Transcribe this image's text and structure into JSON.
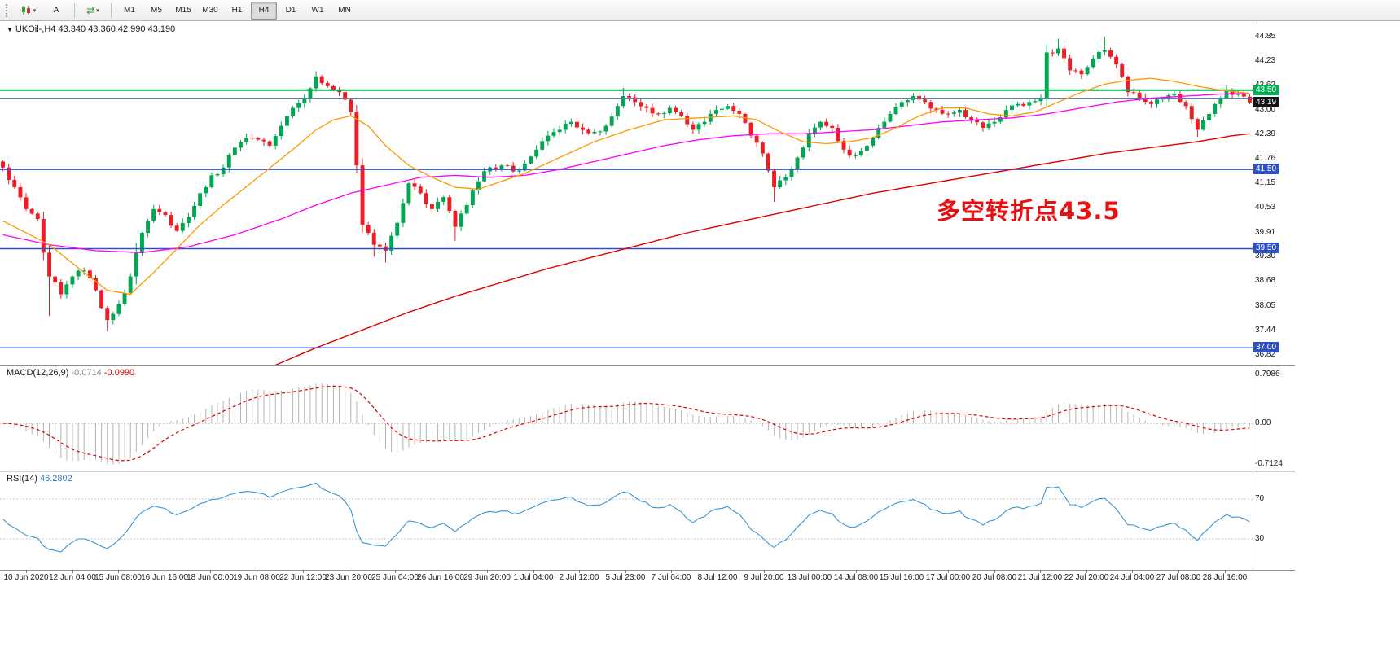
{
  "toolbar": {
    "annotate_label": "A",
    "timeframes": [
      "M1",
      "M5",
      "M15",
      "M30",
      "H1",
      "H4",
      "D1",
      "W1",
      "MN"
    ],
    "active_timeframe": "H4"
  },
  "chart": {
    "symbol_title": "UKOil-,H4 43.340 43.360 42.990 43.190",
    "annotation_text": "多空转折点43.5",
    "price_axis_labels": [
      "44.85",
      "44.23",
      "43.62",
      "43.00",
      "42.39",
      "41.76",
      "41.15",
      "40.53",
      "39.91",
      "39.30",
      "38.68",
      "38.05",
      "37.44",
      "36.82"
    ],
    "levels": [
      {
        "price": 43.5,
        "label": "43.50",
        "color": "#00B050",
        "width": 2
      },
      {
        "price": 43.3,
        "label": "",
        "color": "#4F81BD",
        "width": 1
      },
      {
        "price": 41.5,
        "label": "41.50",
        "color": "#3050C8",
        "width": 1.5
      },
      {
        "price": 39.5,
        "label": "39.50",
        "color": "#3050C8",
        "width": 1.5
      },
      {
        "price": 37.0,
        "label": "37.00",
        "color": "#3050C8",
        "width": 1.5
      }
    ],
    "current_price": {
      "value": 43.19,
      "label": "43.19"
    }
  },
  "chart_data": {
    "type": "candlestick",
    "symbol": "UKOil-",
    "period": "H4",
    "ohlc_display": {
      "open": "43.340",
      "high": "43.360",
      "low": "42.990",
      "close": "43.190"
    },
    "price_axis_top": 44.85,
    "price_axis_bottom": 36.82,
    "candle_count": 216,
    "close_path_anchors": [
      [
        0,
        41.55
      ],
      [
        2,
        41.05
      ],
      [
        4,
        40.5
      ],
      [
        6,
        40.25
      ],
      [
        7,
        39.4
      ],
      [
        8,
        38.8
      ],
      [
        10,
        38.35
      ],
      [
        12,
        38.8
      ],
      [
        14,
        38.95
      ],
      [
        16,
        38.45
      ],
      [
        18,
        37.7
      ],
      [
        20,
        38.1
      ],
      [
        22,
        38.8
      ],
      [
        24,
        39.9
      ],
      [
        26,
        40.5
      ],
      [
        28,
        40.35
      ],
      [
        30,
        39.95
      ],
      [
        32,
        40.3
      ],
      [
        34,
        40.9
      ],
      [
        36,
        41.35
      ],
      [
        38,
        41.55
      ],
      [
        40,
        42.05
      ],
      [
        42,
        42.3
      ],
      [
        44,
        42.25
      ],
      [
        46,
        42.1
      ],
      [
        48,
        42.6
      ],
      [
        50,
        43.05
      ],
      [
        52,
        43.3
      ],
      [
        54,
        43.85
      ],
      [
        56,
        43.6
      ],
      [
        58,
        43.45
      ],
      [
        60,
        42.95
      ],
      [
        61,
        41.6
      ],
      [
        62,
        40.1
      ],
      [
        64,
        39.6
      ],
      [
        66,
        39.45
      ],
      [
        68,
        40.15
      ],
      [
        70,
        41.15
      ],
      [
        72,
        40.9
      ],
      [
        74,
        40.5
      ],
      [
        76,
        40.8
      ],
      [
        78,
        40.05
      ],
      [
        80,
        40.6
      ],
      [
        82,
        41.2
      ],
      [
        84,
        41.55
      ],
      [
        86,
        41.6
      ],
      [
        88,
        41.45
      ],
      [
        90,
        41.65
      ],
      [
        92,
        42.0
      ],
      [
        94,
        42.35
      ],
      [
        96,
        42.5
      ],
      [
        98,
        42.7
      ],
      [
        100,
        42.5
      ],
      [
        102,
        42.45
      ],
      [
        104,
        42.6
      ],
      [
        106,
        43.1
      ],
      [
        107,
        43.35
      ],
      [
        109,
        43.2
      ],
      [
        111,
        43.05
      ],
      [
        113,
        42.9
      ],
      [
        115,
        43.05
      ],
      [
        117,
        42.85
      ],
      [
        119,
        42.5
      ],
      [
        121,
        42.7
      ],
      [
        123,
        43.0
      ],
      [
        125,
        43.1
      ],
      [
        127,
        42.9
      ],
      [
        129,
        42.35
      ],
      [
        131,
        41.9
      ],
      [
        133,
        41.05
      ],
      [
        135,
        41.3
      ],
      [
        137,
        41.8
      ],
      [
        139,
        42.4
      ],
      [
        141,
        42.7
      ],
      [
        143,
        42.55
      ],
      [
        145,
        42.0
      ],
      [
        147,
        41.85
      ],
      [
        149,
        42.1
      ],
      [
        151,
        42.55
      ],
      [
        153,
        42.9
      ],
      [
        155,
        43.2
      ],
      [
        157,
        43.35
      ],
      [
        159,
        43.2
      ],
      [
        161,
        43.0
      ],
      [
        163,
        42.9
      ],
      [
        165,
        43.0
      ],
      [
        167,
        42.75
      ],
      [
        169,
        42.55
      ],
      [
        171,
        42.7
      ],
      [
        173,
        43.0
      ],
      [
        175,
        43.15
      ],
      [
        177,
        43.2
      ],
      [
        179,
        43.3
      ],
      [
        180,
        44.45
      ],
      [
        182,
        44.55
      ],
      [
        184,
        44.0
      ],
      [
        186,
        43.9
      ],
      [
        188,
        44.3
      ],
      [
        190,
        44.5
      ],
      [
        192,
        44.15
      ],
      [
        194,
        43.45
      ],
      [
        196,
        43.3
      ],
      [
        198,
        43.15
      ],
      [
        200,
        43.3
      ],
      [
        202,
        43.4
      ],
      [
        204,
        43.1
      ],
      [
        206,
        42.5
      ],
      [
        208,
        42.9
      ],
      [
        210,
        43.3
      ],
      [
        211,
        43.5
      ],
      [
        213,
        43.4
      ],
      [
        215,
        43.19
      ]
    ],
    "forced_highs": [
      [
        54,
        43.98
      ],
      [
        107,
        43.56
      ],
      [
        182,
        44.8
      ],
      [
        190,
        44.85
      ],
      [
        211,
        43.62
      ]
    ],
    "forced_lows": [
      [
        8,
        37.8
      ],
      [
        18,
        37.42
      ],
      [
        64,
        39.3
      ],
      [
        66,
        39.15
      ],
      [
        78,
        39.7
      ],
      [
        133,
        40.68
      ],
      [
        206,
        42.32
      ]
    ],
    "ma_orange": [
      [
        0,
        40.2
      ],
      [
        8,
        39.6
      ],
      [
        14,
        38.9
      ],
      [
        18,
        38.45
      ],
      [
        22,
        38.35
      ],
      [
        26,
        38.9
      ],
      [
        30,
        39.5
      ],
      [
        34,
        40.1
      ],
      [
        38,
        40.6
      ],
      [
        44,
        41.3
      ],
      [
        50,
        42.0
      ],
      [
        54,
        42.5
      ],
      [
        57,
        42.75
      ],
      [
        60,
        42.85
      ],
      [
        63,
        42.6
      ],
      [
        66,
        42.1
      ],
      [
        70,
        41.6
      ],
      [
        74,
        41.3
      ],
      [
        78,
        41.05
      ],
      [
        82,
        41.0
      ],
      [
        86,
        41.2
      ],
      [
        90,
        41.4
      ],
      [
        96,
        41.8
      ],
      [
        102,
        42.2
      ],
      [
        108,
        42.5
      ],
      [
        114,
        42.75
      ],
      [
        120,
        42.8
      ],
      [
        126,
        42.85
      ],
      [
        130,
        42.75
      ],
      [
        134,
        42.45
      ],
      [
        138,
        42.2
      ],
      [
        142,
        42.15
      ],
      [
        146,
        42.2
      ],
      [
        150,
        42.3
      ],
      [
        154,
        42.55
      ],
      [
        158,
        42.85
      ],
      [
        162,
        43.05
      ],
      [
        166,
        43.05
      ],
      [
        170,
        42.9
      ],
      [
        174,
        42.85
      ],
      [
        178,
        42.95
      ],
      [
        182,
        43.2
      ],
      [
        186,
        43.45
      ],
      [
        190,
        43.65
      ],
      [
        194,
        43.75
      ],
      [
        198,
        43.8
      ],
      [
        202,
        43.72
      ],
      [
        206,
        43.6
      ],
      [
        210,
        43.5
      ],
      [
        215,
        43.42
      ]
    ],
    "ma_magenta": [
      [
        0,
        39.85
      ],
      [
        8,
        39.6
      ],
      [
        16,
        39.45
      ],
      [
        24,
        39.4
      ],
      [
        32,
        39.55
      ],
      [
        40,
        39.85
      ],
      [
        48,
        40.25
      ],
      [
        54,
        40.6
      ],
      [
        60,
        40.9
      ],
      [
        66,
        41.1
      ],
      [
        72,
        41.3
      ],
      [
        78,
        41.35
      ],
      [
        84,
        41.3
      ],
      [
        90,
        41.35
      ],
      [
        96,
        41.5
      ],
      [
        102,
        41.7
      ],
      [
        108,
        41.9
      ],
      [
        114,
        42.1
      ],
      [
        120,
        42.25
      ],
      [
        126,
        42.35
      ],
      [
        132,
        42.4
      ],
      [
        138,
        42.4
      ],
      [
        144,
        42.45
      ],
      [
        150,
        42.5
      ],
      [
        156,
        42.6
      ],
      [
        162,
        42.7
      ],
      [
        168,
        42.75
      ],
      [
        174,
        42.8
      ],
      [
        180,
        42.9
      ],
      [
        186,
        43.05
      ],
      [
        192,
        43.2
      ],
      [
        198,
        43.3
      ],
      [
        204,
        43.35
      ],
      [
        210,
        43.4
      ],
      [
        215,
        43.42
      ]
    ],
    "ma_red": [
      [
        46,
        36.5
      ],
      [
        54,
        37.0
      ],
      [
        62,
        37.45
      ],
      [
        70,
        37.9
      ],
      [
        78,
        38.3
      ],
      [
        86,
        38.65
      ],
      [
        94,
        39.0
      ],
      [
        102,
        39.3
      ],
      [
        110,
        39.6
      ],
      [
        118,
        39.9
      ],
      [
        126,
        40.15
      ],
      [
        134,
        40.4
      ],
      [
        142,
        40.65
      ],
      [
        150,
        40.9
      ],
      [
        158,
        41.1
      ],
      [
        166,
        41.3
      ],
      [
        174,
        41.5
      ],
      [
        182,
        41.7
      ],
      [
        190,
        41.9
      ],
      [
        198,
        42.05
      ],
      [
        206,
        42.2
      ],
      [
        212,
        42.35
      ],
      [
        215,
        42.4
      ]
    ],
    "time_labels": [
      "10 Jun 2020",
      "12 Jun 04:00",
      "15 Jun 08:00",
      "16 Jun 16:00",
      "18 Jun 00:00",
      "19 Jun 08:00",
      "22 Jun 12:00",
      "23 Jun 20:00",
      "25 Jun 04:00",
      "26 Jun 16:00",
      "29 Jun 20:00",
      "1 Jul 04:00",
      "2 Jul 12:00",
      "5 Jul 23:00",
      "7 Jul 04:00",
      "8 Jul 12:00",
      "9 Jul 20:00",
      "13 Jul 00:00",
      "14 Jul 08:00",
      "15 Jul 16:00",
      "17 Jul 00:00",
      "20 Jul 08:00",
      "21 Jul 12:00",
      "22 Jul 20:00",
      "24 Jul 04:00",
      "27 Jul 08:00",
      "28 Jul 16:00"
    ],
    "macd": {
      "label": "MACD(12,26,9)",
      "value_main": "-0.0714",
      "value_signal": "-0.0990",
      "axis_max": "0.7986",
      "axis_zero": "0.00",
      "axis_min": "-0.7124",
      "fast": 12,
      "slow": 26,
      "signal": 9
    },
    "rsi": {
      "label": "RSI(14)",
      "value": "46.2802",
      "period": 14,
      "level_high": 70,
      "level_low": 30
    }
  },
  "colors": {
    "up": "#00A651",
    "down": "#EE1C25",
    "ma_orange": "#FF9900",
    "ma_magenta": "#FF00FF",
    "ma_red": "#DD0000",
    "macd_hist": "#B4B4B4",
    "macd_signal": "#E00000",
    "rsi_line": "#3C96D2",
    "annotation": "#E81010",
    "label_dark_bg": "#141414",
    "level_blue_bg": "#3050C8",
    "level_green_bg": "#00B050"
  }
}
